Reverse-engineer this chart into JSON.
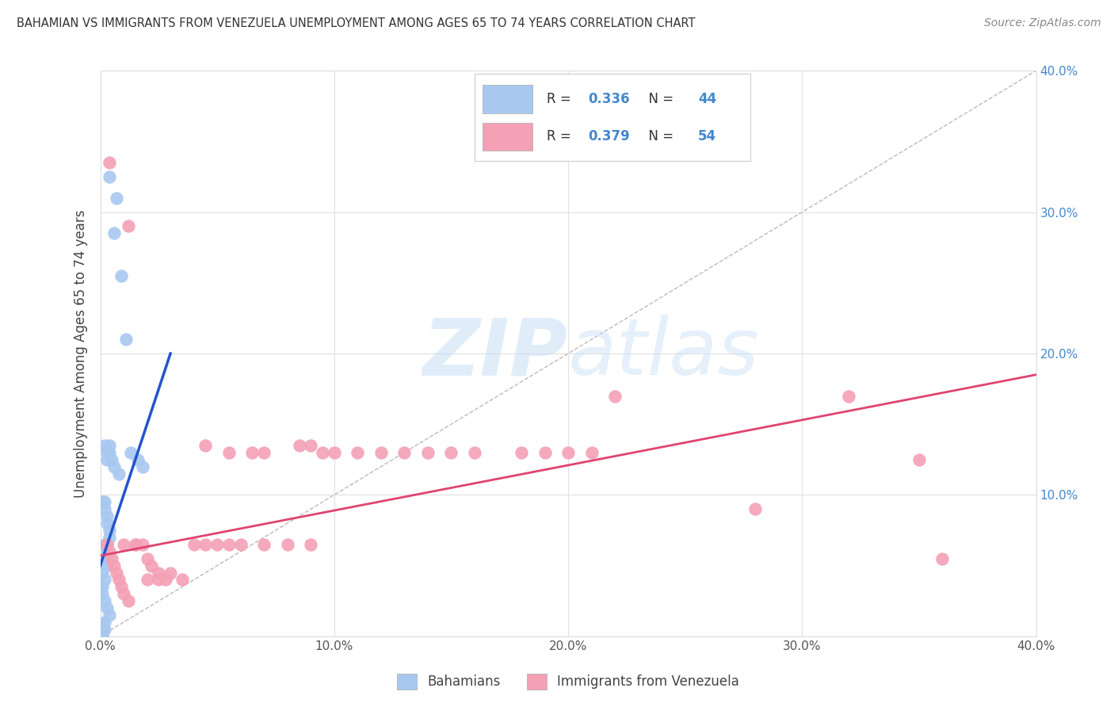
{
  "title": "BAHAMIAN VS IMMIGRANTS FROM VENEZUELA UNEMPLOYMENT AMONG AGES 65 TO 74 YEARS CORRELATION CHART",
  "source": "Source: ZipAtlas.com",
  "ylabel": "Unemployment Among Ages 65 to 74 years",
  "xlim": [
    0.0,
    0.4
  ],
  "ylim": [
    0.0,
    0.4
  ],
  "x_ticks": [
    0.0,
    0.1,
    0.2,
    0.3,
    0.4
  ],
  "y_ticks": [
    0.0,
    0.1,
    0.2,
    0.3,
    0.4
  ],
  "x_tick_labels": [
    "0.0%",
    "10.0%",
    "20.0%",
    "30.0%",
    "40.0%"
  ],
  "y_tick_labels_right": [
    "",
    "10.0%",
    "20.0%",
    "30.0%",
    "40.0%"
  ],
  "blue_color": "#a8c8f0",
  "pink_color": "#f4a0b5",
  "blue_line_color": "#2255cc",
  "pink_line_color": "#e04470",
  "blue_R": "0.336",
  "blue_N": "44",
  "pink_R": "0.379",
  "pink_N": "54",
  "watermark_zip": "ZIP",
  "watermark_atlas": "atlas",
  "accent_color": "#4488cc",
  "blue_line_x0": 0.0,
  "blue_line_x1": 0.03,
  "blue_line_y0": 0.05,
  "blue_line_y1": 0.2,
  "pink_line_x0": 0.0,
  "pink_line_x1": 0.4,
  "pink_line_y0": 0.057,
  "pink_line_y1": 0.185,
  "blue_scatter_x": [
    0.004,
    0.006,
    0.007,
    0.009,
    0.011,
    0.013,
    0.016,
    0.018,
    0.004,
    0.006,
    0.008,
    0.002,
    0.003,
    0.003,
    0.004,
    0.005,
    0.002,
    0.001,
    0.002,
    0.003,
    0.003,
    0.004,
    0.004,
    0.003,
    0.002,
    0.001,
    0.002,
    0.003,
    0.001,
    0.002,
    0.001,
    0.001,
    0.002,
    0.003,
    0.004,
    0.002,
    0.001,
    0.002,
    0.001,
    0.001,
    0.001,
    0.001,
    0.001,
    0.001
  ],
  "blue_scatter_y": [
    0.325,
    0.285,
    0.31,
    0.255,
    0.21,
    0.13,
    0.125,
    0.12,
    0.135,
    0.12,
    0.115,
    0.135,
    0.13,
    0.125,
    0.13,
    0.125,
    0.095,
    0.095,
    0.09,
    0.085,
    0.08,
    0.075,
    0.07,
    0.065,
    0.065,
    0.06,
    0.055,
    0.05,
    0.045,
    0.04,
    0.035,
    0.03,
    0.025,
    0.02,
    0.015,
    0.01,
    0.008,
    0.005,
    0.004,
    0.003,
    0.002,
    0.001,
    0.001,
    0.001
  ],
  "pink_scatter_x": [
    0.004,
    0.012,
    0.045,
    0.055,
    0.065,
    0.07,
    0.085,
    0.09,
    0.095,
    0.1,
    0.11,
    0.12,
    0.13,
    0.14,
    0.15,
    0.16,
    0.18,
    0.19,
    0.2,
    0.21,
    0.22,
    0.28,
    0.32,
    0.35,
    0.36,
    0.003,
    0.004,
    0.005,
    0.006,
    0.007,
    0.008,
    0.009,
    0.01,
    0.012,
    0.015,
    0.018,
    0.02,
    0.022,
    0.025,
    0.028,
    0.03,
    0.035,
    0.04,
    0.045,
    0.05,
    0.055,
    0.06,
    0.07,
    0.08,
    0.09,
    0.01,
    0.015,
    0.02,
    0.025
  ],
  "pink_scatter_y": [
    0.335,
    0.29,
    0.135,
    0.13,
    0.13,
    0.13,
    0.135,
    0.135,
    0.13,
    0.13,
    0.13,
    0.13,
    0.13,
    0.13,
    0.13,
    0.13,
    0.13,
    0.13,
    0.13,
    0.13,
    0.17,
    0.09,
    0.17,
    0.125,
    0.055,
    0.065,
    0.06,
    0.055,
    0.05,
    0.045,
    0.04,
    0.035,
    0.03,
    0.025,
    0.065,
    0.065,
    0.055,
    0.05,
    0.045,
    0.04,
    0.045,
    0.04,
    0.065,
    0.065,
    0.065,
    0.065,
    0.065,
    0.065,
    0.065,
    0.065,
    0.065,
    0.065,
    0.04,
    0.04
  ]
}
